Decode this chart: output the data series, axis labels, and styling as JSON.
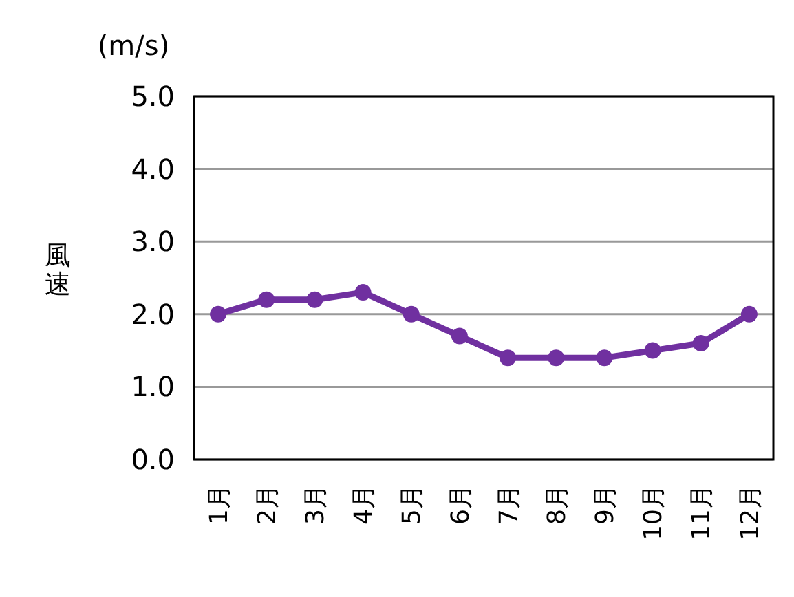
{
  "chart_data": {
    "type": "line",
    "ylabel": "風速",
    "annotations": [
      "(m/s)"
    ],
    "categories": [
      "1月",
      "2月",
      "3月",
      "4月",
      "5月",
      "6月",
      "7月",
      "8月",
      "9月",
      "10月",
      "11月",
      "12月"
    ],
    "series": [
      {
        "color": "#7030a0",
        "values": [
          2.0,
          2.2,
          2.2,
          2.3,
          2.0,
          1.7,
          1.4,
          1.4,
          1.4,
          1.5,
          1.6,
          2.0
        ]
      }
    ],
    "ylim": [
      0,
      5
    ],
    "yticks": [
      {
        "value": 0,
        "label": "0.0"
      },
      {
        "value": 1,
        "label": "1.0"
      },
      {
        "value": 2,
        "label": "2.0"
      },
      {
        "value": 3,
        "label": "3.0"
      },
      {
        "value": 4,
        "label": "4.0"
      },
      {
        "value": 5,
        "label": "5.0"
      }
    ],
    "grid": "y",
    "marker": "circle",
    "line_style": "solid"
  }
}
